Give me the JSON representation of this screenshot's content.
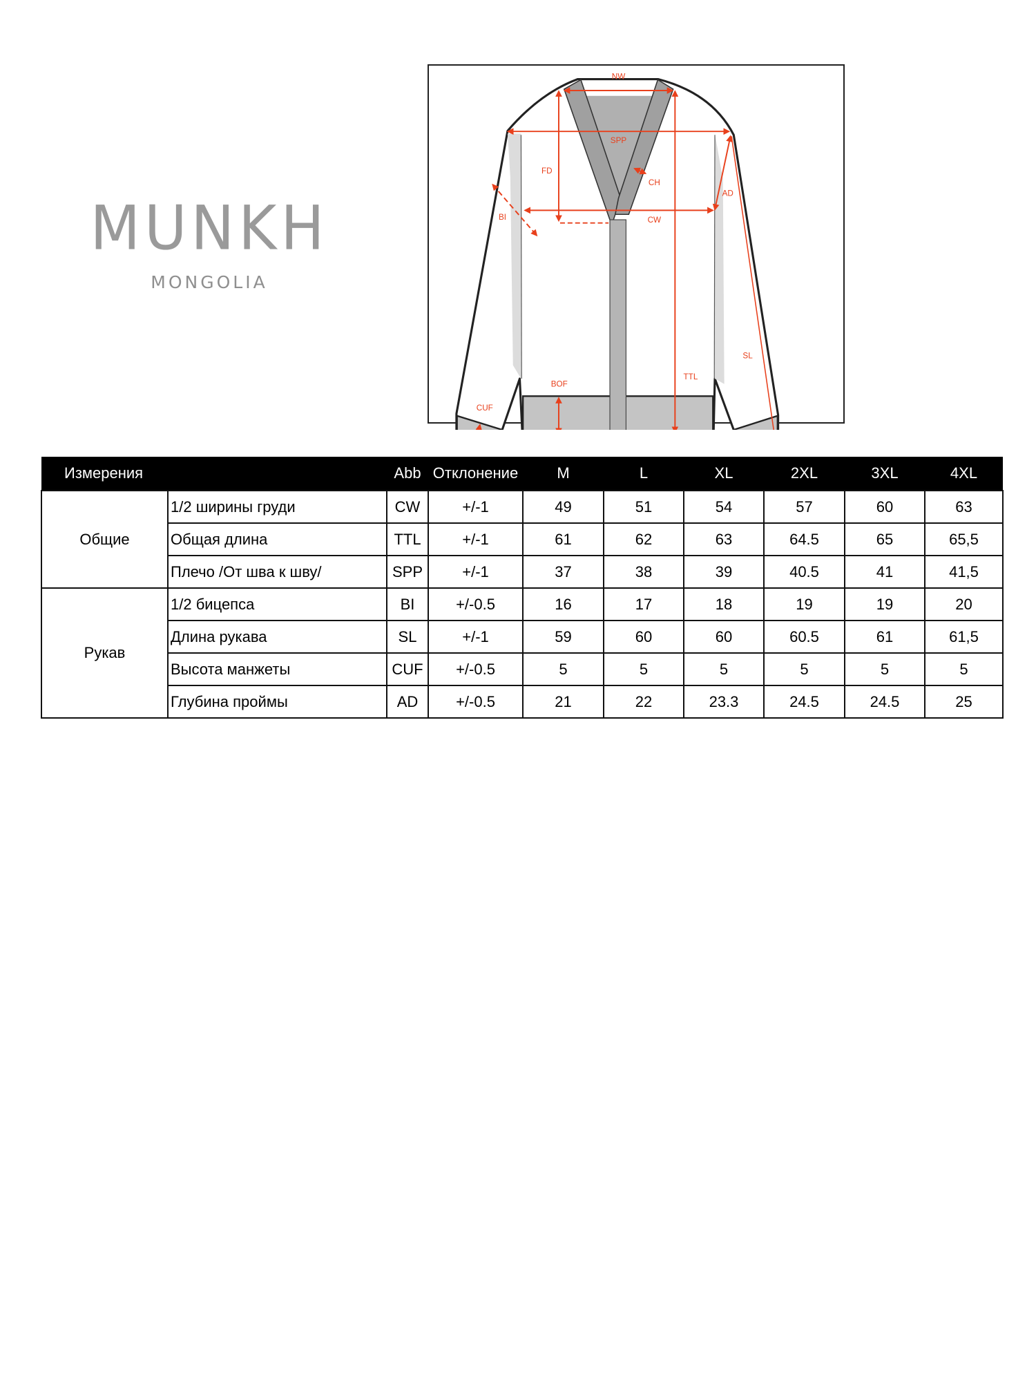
{
  "logo": {
    "brand": "MUNKH",
    "sub": "MONGOLIA"
  },
  "diagram": {
    "labels": {
      "nw": "NW",
      "spp": "SPP",
      "fd": "FD",
      "ch": "CH",
      "cw": "CW",
      "ad": "AD",
      "bi": "BI",
      "sl": "SL",
      "ttl": "TTL",
      "bof": "BOF",
      "cuf": "CUF"
    },
    "accent_color": "#e8401c"
  },
  "table": {
    "headers": [
      "Измерения",
      "Abb",
      "Отклонение",
      "M",
      "L",
      "XL",
      "2XL",
      "3XL",
      "4XL"
    ],
    "groups": [
      {
        "name": "Общие",
        "rows": [
          {
            "label": "1/2 ширины груди",
            "abb": "CW",
            "tol": "+/-1",
            "values": [
              "49",
              "51",
              "54",
              "57",
              "60",
              "63"
            ]
          },
          {
            "label": "Общая длина",
            "abb": "TTL",
            "tol": "+/-1",
            "values": [
              "61",
              "62",
              "63",
              "64.5",
              "65",
              "65,5"
            ]
          },
          {
            "label": "Плечо /От шва к шву/",
            "abb": "SPP",
            "tol": "+/-1",
            "values": [
              "37",
              "38",
              "39",
              "40.5",
              "41",
              "41,5"
            ]
          }
        ]
      },
      {
        "name": "Рукав",
        "rows": [
          {
            "label": "1/2 бицепса",
            "abb": "BI",
            "tol": "+/-0.5",
            "values": [
              "16",
              "17",
              "18",
              "19",
              "19",
              "20"
            ]
          },
          {
            "label": "Длина рукава",
            "abb": "SL",
            "tol": "+/-1",
            "values": [
              "59",
              "60",
              "60",
              "60.5",
              "61",
              "61,5"
            ]
          },
          {
            "label": "Высота манжеты",
            "abb": "CUF",
            "tol": "+/-0.5",
            "values": [
              "5",
              "5",
              "5",
              "5",
              "5",
              "5"
            ]
          },
          {
            "label": "Глубина проймы",
            "abb": "AD",
            "tol": "+/-0.5",
            "values": [
              "21",
              "22",
              "23.3",
              "24.5",
              "24.5",
              "25"
            ]
          }
        ]
      }
    ]
  }
}
